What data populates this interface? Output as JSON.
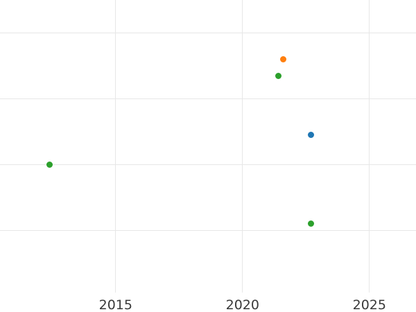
{
  "chart_data": {
    "type": "scatter",
    "title": "",
    "xlabel": "",
    "ylabel": "",
    "x_tick_labels": [
      "2015",
      "2020",
      "2025"
    ],
    "x_tick_values": [
      2015,
      2020,
      2025
    ],
    "y_tick_labels": [],
    "y_gridline_values": [
      1,
      2,
      3,
      4
    ],
    "xlim": [
      2010.44,
      2026.83
    ],
    "ylim": [
      0.06,
      4.49
    ],
    "grid": true,
    "legend": false,
    "series": [
      {
        "name": "series-blue",
        "color": "#1f77b4",
        "points": [
          {
            "x": 2022.7,
            "y": 2.45
          }
        ]
      },
      {
        "name": "series-orange",
        "color": "#ff7f0e",
        "points": [
          {
            "x": 2021.6,
            "y": 3.6
          }
        ]
      },
      {
        "name": "series-green",
        "color": "#2ca02c",
        "points": [
          {
            "x": 2012.4,
            "y": 2.0
          },
          {
            "x": 2021.4,
            "y": 3.34
          },
          {
            "x": 2022.7,
            "y": 1.11
          }
        ]
      }
    ],
    "colors": {
      "background": "#ffffff",
      "gridline": "#e7e7e7",
      "tick_label": "#3a3a3a"
    }
  }
}
